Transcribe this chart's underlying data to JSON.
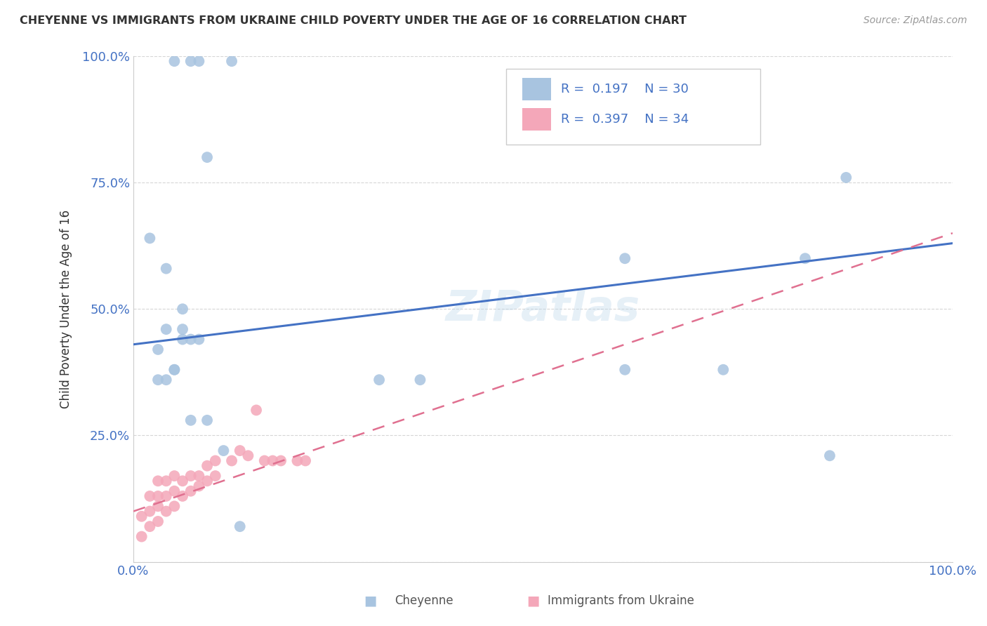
{
  "title": "CHEYENNE VS IMMIGRANTS FROM UKRAINE CHILD POVERTY UNDER THE AGE OF 16 CORRELATION CHART",
  "source": "Source: ZipAtlas.com",
  "ylabel": "Child Poverty Under the Age of 16",
  "xlim": [
    0,
    1
  ],
  "ylim": [
    0,
    1
  ],
  "xticks": [
    0,
    0.25,
    0.5,
    0.75,
    1.0
  ],
  "yticks": [
    0,
    0.25,
    0.5,
    0.75,
    1.0
  ],
  "xticklabels": [
    "0.0%",
    "",
    "",
    "",
    "100.0%"
  ],
  "yticklabels": [
    "",
    "25.0%",
    "50.0%",
    "75.0%",
    "100.0%"
  ],
  "cheyenne_color": "#a8c4e0",
  "ukraine_color": "#f4a7b9",
  "cheyenne_line_color": "#4472c4",
  "ukraine_line_color": "#e07090",
  "background_color": "#ffffff",
  "cheyenne_line_y0": 0.43,
  "cheyenne_line_y1": 0.63,
  "ukraine_line_y0": 0.1,
  "ukraine_line_y1": 0.65,
  "cheyenne_x": [
    0.05,
    0.07,
    0.08,
    0.12,
    0.09,
    0.02,
    0.04,
    0.04,
    0.06,
    0.06,
    0.08,
    0.03,
    0.05,
    0.03,
    0.05,
    0.3,
    0.35,
    0.6,
    0.72,
    0.82,
    0.87,
    0.6,
    0.85,
    0.07,
    0.09,
    0.13,
    0.11,
    0.06,
    0.04,
    0.07
  ],
  "cheyenne_y": [
    0.99,
    0.99,
    0.99,
    0.99,
    0.8,
    0.64,
    0.58,
    0.46,
    0.46,
    0.44,
    0.44,
    0.42,
    0.38,
    0.36,
    0.38,
    0.36,
    0.36,
    0.6,
    0.38,
    0.6,
    0.76,
    0.38,
    0.21,
    0.28,
    0.28,
    0.07,
    0.22,
    0.5,
    0.36,
    0.44
  ],
  "ukraine_x": [
    0.01,
    0.01,
    0.02,
    0.02,
    0.02,
    0.03,
    0.03,
    0.03,
    0.03,
    0.04,
    0.04,
    0.04,
    0.05,
    0.05,
    0.05,
    0.06,
    0.06,
    0.07,
    0.07,
    0.08,
    0.08,
    0.09,
    0.09,
    0.1,
    0.1,
    0.12,
    0.13,
    0.14,
    0.15,
    0.16,
    0.17,
    0.18,
    0.2,
    0.21
  ],
  "ukraine_y": [
    0.05,
    0.09,
    0.07,
    0.1,
    0.13,
    0.08,
    0.11,
    0.13,
    0.16,
    0.1,
    0.13,
    0.16,
    0.11,
    0.14,
    0.17,
    0.13,
    0.16,
    0.14,
    0.17,
    0.15,
    0.17,
    0.16,
    0.19,
    0.17,
    0.2,
    0.2,
    0.22,
    0.21,
    0.3,
    0.2,
    0.2,
    0.2,
    0.2,
    0.2
  ]
}
